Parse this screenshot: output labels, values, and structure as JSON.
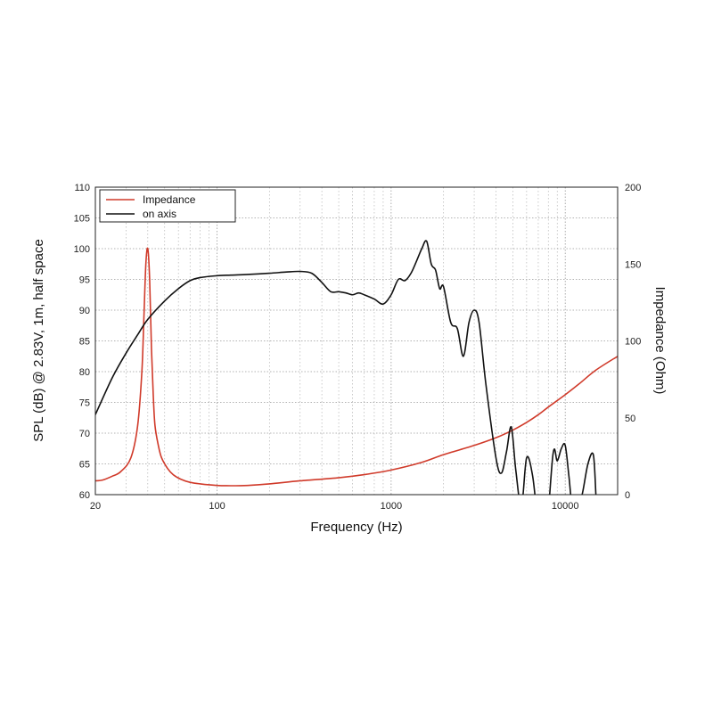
{
  "chart_data": {
    "type": "line",
    "title": "",
    "xlabel": "Frequency (Hz)",
    "ylabel": "SPL (dB) @ 2.83V, 1m, half space",
    "y2label": "Impedance (Ohm)",
    "x_scale": "log",
    "xlim": [
      20,
      20000
    ],
    "ylim": [
      60,
      110
    ],
    "y2lim": [
      0,
      200
    ],
    "x_ticks": [
      20,
      100,
      1000,
      10000
    ],
    "x_tick_labels": [
      "20",
      "100",
      "1000",
      "10000"
    ],
    "y_ticks": [
      60,
      65,
      70,
      75,
      80,
      85,
      90,
      95,
      100,
      105,
      110
    ],
    "y_tick_labels": [
      "60",
      "65",
      "70",
      "75",
      "80",
      "85",
      "90",
      "95",
      "100",
      "105",
      "110"
    ],
    "y2_ticks": [
      0,
      50,
      100,
      150,
      200
    ],
    "y2_tick_labels": [
      "0",
      "50",
      "100",
      "150",
      "200"
    ],
    "grid": true,
    "legend_position": "top-left",
    "series": [
      {
        "name": "Impedance",
        "axis": "right",
        "color": "#d03a2a",
        "x": [
          20,
          22,
          25,
          28,
          32,
          35,
          37,
          38,
          39,
          40,
          41,
          42,
          43,
          44,
          46,
          48,
          52,
          56,
          62,
          70,
          80,
          100,
          120,
          150,
          200,
          300,
          500,
          700,
          1000,
          1500,
          2000,
          3000,
          4000,
          5000,
          6000,
          7000,
          8000,
          10000,
          12000,
          15000,
          20000
        ],
        "values": [
          9,
          9.5,
          12,
          15,
          24,
          45,
          80,
          115,
          150,
          160,
          140,
          95,
          65,
          45,
          32,
          24,
          17,
          13,
          10,
          8,
          7,
          6,
          5.8,
          6,
          7,
          9,
          11,
          13,
          16,
          21,
          26,
          32,
          37,
          42,
          47,
          52,
          57,
          65,
          72,
          81,
          90
        ]
      },
      {
        "name": "on axis",
        "axis": "left",
        "color": "#111111",
        "x": [
          20,
          25,
          30,
          35,
          40,
          50,
          60,
          70,
          80,
          100,
          120,
          150,
          200,
          250,
          300,
          350,
          400,
          450,
          500,
          550,
          600,
          650,
          700,
          800,
          900,
          1000,
          1100,
          1200,
          1300,
          1400,
          1500,
          1600,
          1700,
          1800,
          1900,
          2000,
          2200,
          2400,
          2600,
          2800,
          3000,
          3200,
          3500,
          4000,
          4300,
          4600,
          4900,
          5200,
          5600,
          6000,
          6500,
          7000,
          7600,
          8500,
          9000,
          9500,
          10000,
          10500,
          11000,
          11800,
          12500,
          13500,
          14500,
          15000
        ],
        "values": [
          73,
          79,
          83,
          86,
          88.5,
          91.5,
          93.5,
          94.8,
          95.3,
          95.6,
          95.7,
          95.8,
          96,
          96.2,
          96.3,
          96,
          94.5,
          93,
          93,
          92.8,
          92.5,
          92.8,
          92.5,
          91.8,
          91,
          92.5,
          95,
          94.8,
          96,
          98,
          100,
          101.2,
          97.5,
          96.5,
          93.5,
          93.8,
          88,
          87,
          82.5,
          88,
          90,
          88,
          78,
          66,
          63.5,
          67,
          71,
          64,
          58,
          66,
          63,
          55,
          50,
          66.5,
          65.5,
          67.5,
          68,
          63,
          58,
          59,
          60,
          65,
          66.5,
          60
        ]
      }
    ]
  }
}
